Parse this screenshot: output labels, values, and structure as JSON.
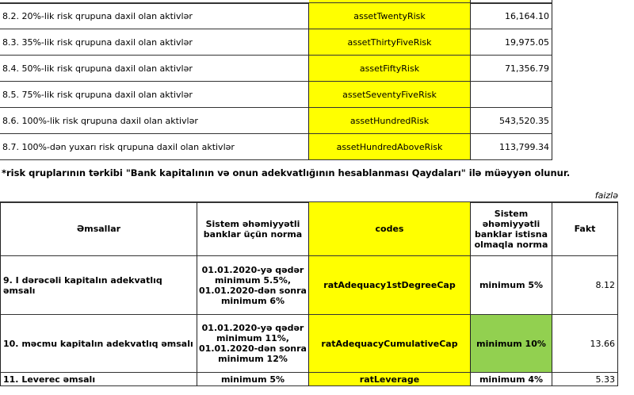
{
  "risk_table": [
    {
      "label": "8.2. 20%-lik risk qrupuna daxil olan aktivlər",
      "code": "assetTwentyRisk",
      "value": "16,164.10"
    },
    {
      "label": "8.3. 35%-lik risk qrupuna daxil olan aktivlər",
      "code": "assetThirtyFiveRisk",
      "value": "19,975.05"
    },
    {
      "label": "8.4. 50%-lik risk qrupuna daxil olan aktivlər",
      "code": "assetFiftyRisk",
      "value": "71,356.79"
    },
    {
      "label": "8.5.  75%-lik risk qrupuna daxil olan aktivlər",
      "code": "assetSeventyFiveRisk",
      "value": ""
    },
    {
      "label": "8.6.  100%-lik risk qrupuna daxil olan aktivlər",
      "code": "assetHundredRisk",
      "value": "543,520.35"
    },
    {
      "label": "8.7. 100%-dən yuxarı risk qrupuna daxil olan aktivlər",
      "code": "assetHundredAboveRisk",
      "value": "113,799.34"
    }
  ],
  "footnote": "*risk qruplarının tərkibi \"Bank kapitalının və onun adekvatlığının hesablanması Qaydaları\" ilə müəyyən olunur.",
  "unit": "faizlə",
  "ratios": {
    "headers": [
      "Əmsallar",
      "Sistem əhəmiyyətli banklar üçün norma",
      "codes",
      "Sistem əhəmiyyətli banklar istisna olmaqla norma",
      "Fakt"
    ],
    "rows": [
      {
        "label": "9.  I dərəcəli  kapitalın  adekvatlıq əmsalı",
        "sys_norm": "01.01.2020-yə qədər minimum 5.5%, 01.01.2020-dən sonra minimum 6%",
        "code": "ratAdequacy1stDegreeCap",
        "norm": "minimum 5%",
        "fact": "8.12"
      },
      {
        "label": "10. məcmu kapitalın  adekvatlıq  əmsalı",
        "sys_norm": "01.01.2020-yə qədər minimum 11%, 01.01.2020-dən sonra minimum 12%",
        "code": "ratAdequacyCumulativeCap",
        "norm": "minimum 10%",
        "fact": "13.66"
      },
      {
        "label": "11. Leverec əmsalı",
        "sys_norm": "minimum 5%",
        "code": "ratLeverage",
        "norm": "minimum 4%",
        "fact": "5.33"
      }
    ]
  },
  "colors": {
    "code_fill": "#ffff00",
    "highlight_fill": "#92d050"
  }
}
